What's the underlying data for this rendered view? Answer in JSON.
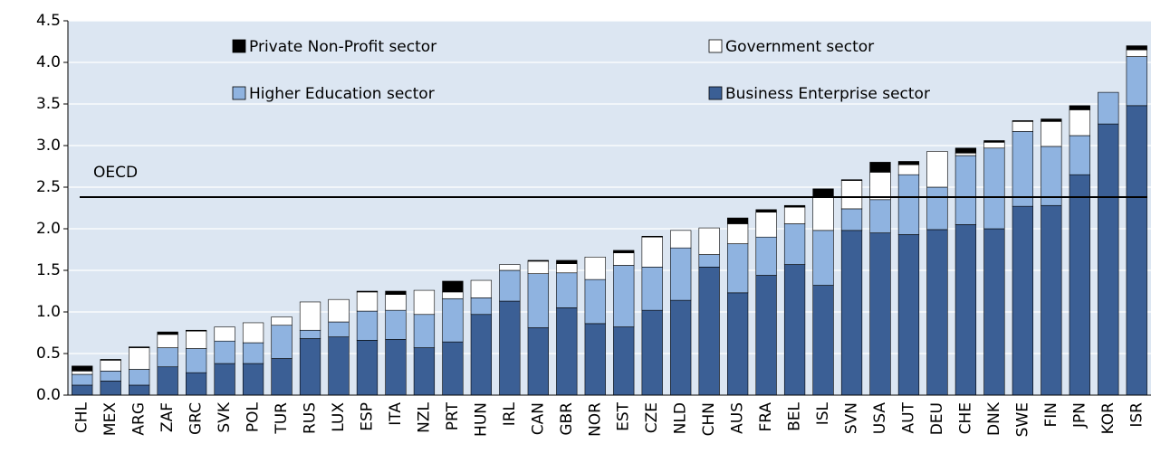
{
  "chart_data": {
    "type": "stacked_bar",
    "categories": [
      "CHL",
      "MEX",
      "ARG",
      "ZAF",
      "GRC",
      "SVK",
      "POL",
      "TUR",
      "RUS",
      "LUX",
      "ESP",
      "ITA",
      "NZL",
      "PRT",
      "HUN",
      "IRL",
      "CAN",
      "GBR",
      "NOR",
      "EST",
      "CZE",
      "NLD",
      "CHN",
      "AUS",
      "FRA",
      "BEL",
      "ISL",
      "SVN",
      "USA",
      "AUT",
      "DEU",
      "CHE",
      "DNK",
      "SWE",
      "FIN",
      "JPN",
      "KOR",
      "ISR"
    ],
    "series": [
      {
        "name": "Business Enterprise sector",
        "color": "#3b5f95",
        "values": [
          0.12,
          0.17,
          0.12,
          0.34,
          0.27,
          0.38,
          0.38,
          0.44,
          0.68,
          0.7,
          0.66,
          0.67,
          0.57,
          0.64,
          0.97,
          1.13,
          0.81,
          1.05,
          0.86,
          0.82,
          1.02,
          1.14,
          1.54,
          1.23,
          1.44,
          1.57,
          1.32,
          1.98,
          1.95,
          1.93,
          1.99,
          2.05,
          2.0,
          2.27,
          2.28,
          2.65,
          3.26,
          3.48
        ]
      },
      {
        "name": "Higher Education sector",
        "color": "#8fb3e0",
        "values": [
          0.13,
          0.12,
          0.19,
          0.23,
          0.29,
          0.27,
          0.25,
          0.4,
          0.1,
          0.18,
          0.35,
          0.35,
          0.4,
          0.52,
          0.2,
          0.37,
          0.65,
          0.42,
          0.53,
          0.74,
          0.52,
          0.63,
          0.15,
          0.59,
          0.46,
          0.49,
          0.66,
          0.26,
          0.4,
          0.72,
          0.51,
          0.83,
          0.97,
          0.9,
          0.71,
          0.47,
          0.38,
          0.59
        ]
      },
      {
        "name": "Government sector",
        "color": "#ffffff",
        "values": [
          0.04,
          0.13,
          0.26,
          0.16,
          0.21,
          0.17,
          0.24,
          0.1,
          0.34,
          0.27,
          0.23,
          0.19,
          0.29,
          0.08,
          0.21,
          0.07,
          0.15,
          0.11,
          0.27,
          0.15,
          0.36,
          0.21,
          0.32,
          0.24,
          0.3,
          0.2,
          0.41,
          0.34,
          0.33,
          0.12,
          0.43,
          0.03,
          0.07,
          0.12,
          0.3,
          0.31,
          0,
          0.08
        ]
      },
      {
        "name": "Private Non-Profit sector",
        "color": "#000000",
        "values": [
          0.06,
          0.01,
          0.01,
          0.03,
          0.01,
          0,
          0,
          0,
          0,
          0,
          0.01,
          0.04,
          0,
          0.13,
          0,
          0,
          0.01,
          0.04,
          0,
          0.03,
          0.01,
          0,
          0,
          0.07,
          0.03,
          0.02,
          0.09,
          0.01,
          0.12,
          0.04,
          0,
          0.06,
          0.02,
          0.01,
          0.03,
          0.05,
          0,
          0.05
        ]
      }
    ],
    "reference": {
      "label": "OECD",
      "value": 2.38
    },
    "ylim": [
      0,
      4.5
    ],
    "yticks": [
      {
        "value": 0,
        "label": "0.0"
      },
      {
        "value": 0.5,
        "label": "0.5"
      },
      {
        "value": 1,
        "label": "1.0"
      },
      {
        "value": 1.5,
        "label": "1.5"
      },
      {
        "value": 2,
        "label": "2.0"
      },
      {
        "value": 2.5,
        "label": "2.5"
      },
      {
        "value": 3,
        "label": "3.0"
      },
      {
        "value": 3.5,
        "label": "3.5"
      },
      {
        "value": 4,
        "label": "4.0"
      },
      {
        "value": 4.5,
        "label": "4.5"
      }
    ],
    "grid": true
  }
}
